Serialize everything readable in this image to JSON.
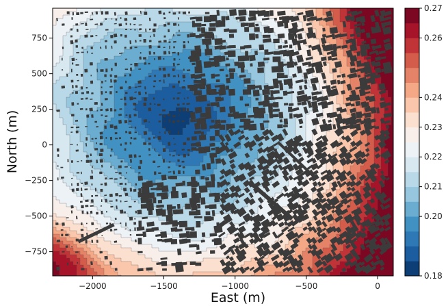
{
  "chart_data": {
    "type": "heatmap",
    "title": "",
    "xlabel": "East (m)",
    "ylabel": "North (m)",
    "xlim": [
      -2280,
      110
    ],
    "ylim": [
      -920,
      960
    ],
    "xticks": [
      -2000,
      -1500,
      -1000,
      -500,
      0
    ],
    "xtick_labels": [
      "−2000",
      "−1500",
      "−1000",
      "−500",
      "0"
    ],
    "yticks": [
      750,
      500,
      250,
      0,
      -250,
      -500,
      -750
    ],
    "ytick_labels": [
      "750",
      "500",
      "250",
      "0",
      "−250",
      "−500",
      "−750"
    ],
    "colorbar": {
      "colormap": "RdBu_r",
      "min": 0.18,
      "max": 0.27,
      "levels": 18,
      "ticks": [
        0.18,
        0.2,
        0.21,
        0.22,
        0.23,
        0.24,
        0.26,
        0.27
      ],
      "tick_labels": [
        "0.18",
        "0.20",
        "0.21",
        "0.22",
        "0.23",
        "0.24",
        "0.26",
        "0.27"
      ]
    },
    "field": {
      "minimum": {
        "x": -1400,
        "y": 200,
        "value": 0.18
      },
      "maximum": {
        "x": 80,
        "y": 900,
        "value": 0.27
      },
      "secondary_high": {
        "x": -2250,
        "y": -850,
        "value": 0.245
      }
    },
    "overlay": "building-footprints",
    "colors": {
      "low": "#053061",
      "mid": "#f7f7f7",
      "high": "#67001f",
      "buildings": "#3b3b3b",
      "contour_lines": "#4a4a4a"
    }
  }
}
